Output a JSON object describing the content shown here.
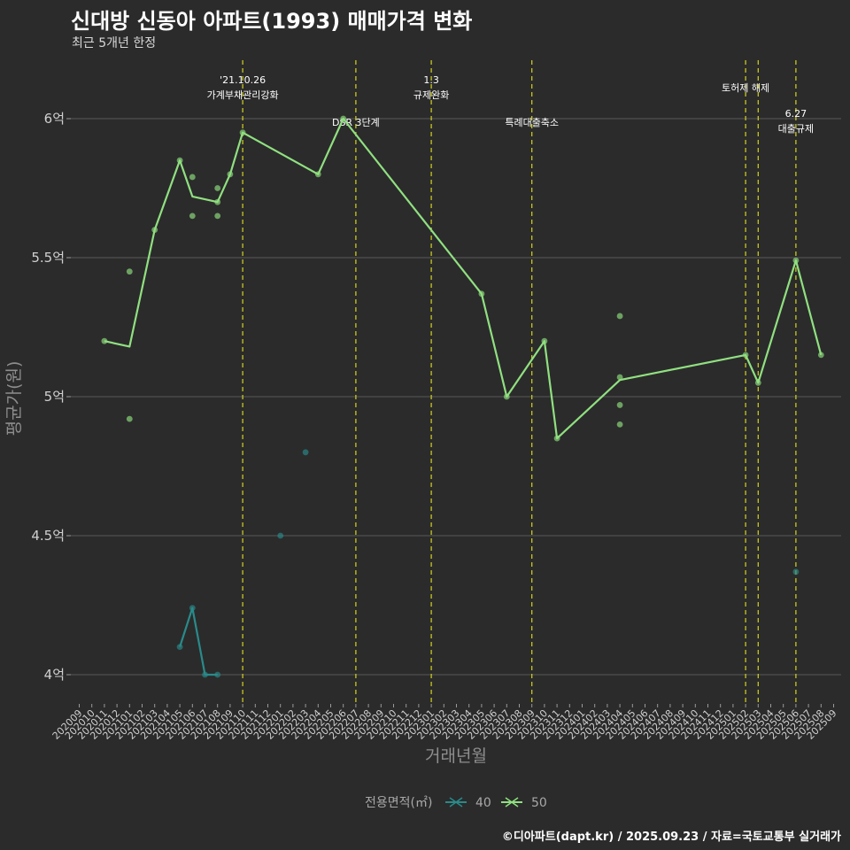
{
  "header": {
    "title": "신대방 신동아 아파트(1993) 매매가격 변화",
    "subtitle": "최근 5개년 한정"
  },
  "caption": "©디아파트(dapt.kr) / 2025.09.23 / 자료=국토교통부 실거래가",
  "colors": {
    "background": "#2b2b2b",
    "grid": "#5a5a5a",
    "series_40": "#2a8a8a",
    "series_50": "#90e080",
    "vline": "#d4d41e"
  },
  "chart_data": {
    "type": "line",
    "title": "신대방 신동아 아파트(1993) 매매가격 변화",
    "xlabel": "거래년월",
    "ylabel": "평균가(원)",
    "ylim": [
      3.9,
      6.2
    ],
    "yticks": [
      4,
      4.5,
      5,
      5.5,
      6
    ],
    "ytick_labels": [
      "4억",
      "4.5억",
      "5억",
      "5.5억",
      "6억"
    ],
    "categories": [
      "202009",
      "202010",
      "202011",
      "202012",
      "202101",
      "202102",
      "202103",
      "202104",
      "202105",
      "202106",
      "202107",
      "202108",
      "202109",
      "202110",
      "202111",
      "202112",
      "202201",
      "202202",
      "202203",
      "202204",
      "202205",
      "202206",
      "202207",
      "202208",
      "202209",
      "202210",
      "202211",
      "202212",
      "202301",
      "202302",
      "202303",
      "202304",
      "202305",
      "202306",
      "202307",
      "202308",
      "202309",
      "202310",
      "202311",
      "202312",
      "202401",
      "202402",
      "202403",
      "202404",
      "202405",
      "202406",
      "202407",
      "202408",
      "202409",
      "202410",
      "202411",
      "202412",
      "202501",
      "202502",
      "202503",
      "202504",
      "202505",
      "202506",
      "202507",
      "202508",
      "202509"
    ],
    "legend_title": "전용면적(㎡)",
    "series": [
      {
        "name": "40",
        "line": [
          [
            "202105",
            4.1
          ],
          [
            "202106",
            4.24
          ],
          [
            "202107",
            4.0
          ],
          [
            "202108",
            4.0
          ]
        ],
        "points": [
          [
            "202105",
            4.1
          ],
          [
            "202106",
            4.24
          ],
          [
            "202107",
            4.0
          ],
          [
            "202108",
            4.0
          ],
          [
            "202201",
            4.5
          ],
          [
            "202203",
            4.8
          ],
          [
            "202506",
            4.37
          ]
        ]
      },
      {
        "name": "50",
        "line": [
          [
            "202011",
            5.2
          ],
          [
            "202101",
            5.18
          ],
          [
            "202103",
            5.6
          ],
          [
            "202105",
            5.85
          ],
          [
            "202106",
            5.72
          ],
          [
            "202108",
            5.7
          ],
          [
            "202109",
            5.8
          ],
          [
            "202110",
            5.95
          ],
          [
            "202204",
            5.8
          ],
          [
            "202206",
            6.0
          ],
          [
            "202305",
            5.37
          ],
          [
            "202307",
            5.0
          ],
          [
            "202310",
            5.2
          ],
          [
            "202311",
            4.85
          ],
          [
            "202404",
            5.06
          ],
          [
            "202502",
            5.15
          ],
          [
            "202503",
            5.05
          ],
          [
            "202506",
            5.49
          ],
          [
            "202508",
            5.15
          ]
        ],
        "points": [
          [
            "202011",
            5.2
          ],
          [
            "202101",
            5.45
          ],
          [
            "202101",
            4.92
          ],
          [
            "202103",
            5.6
          ],
          [
            "202105",
            5.85
          ],
          [
            "202106",
            5.79
          ],
          [
            "202106",
            5.65
          ],
          [
            "202108",
            5.75
          ],
          [
            "202108",
            5.65
          ],
          [
            "202108",
            5.7
          ],
          [
            "202109",
            5.8
          ],
          [
            "202110",
            5.95
          ],
          [
            "202204",
            5.8
          ],
          [
            "202206",
            6.0
          ],
          [
            "202305",
            5.37
          ],
          [
            "202307",
            5.0
          ],
          [
            "202310",
            5.2
          ],
          [
            "202311",
            4.85
          ],
          [
            "202404",
            5.29
          ],
          [
            "202404",
            5.07
          ],
          [
            "202404",
            4.97
          ],
          [
            "202404",
            4.9
          ],
          [
            "202502",
            5.15
          ],
          [
            "202503",
            5.05
          ],
          [
            "202506",
            5.49
          ],
          [
            "202508",
            5.15
          ]
        ]
      }
    ],
    "events": [
      {
        "x": "202110",
        "lines": [
          "'21.10.26",
          "가계부채관리강화"
        ],
        "pos": "high"
      },
      {
        "x": "202207",
        "lines": [
          "DSR 3단계"
        ],
        "pos": "low"
      },
      {
        "x": "202301",
        "lines": [
          "1.3",
          "규제완화"
        ],
        "pos": "high"
      },
      {
        "x": "202309",
        "lines": [
          "특례대출축소"
        ],
        "pos": "low"
      },
      {
        "x": "202502",
        "lines": [
          "토허제 해제"
        ],
        "pos": "mid"
      },
      {
        "x": "202503",
        "lines": [],
        "pos": "none"
      },
      {
        "x": "202506",
        "lines": [
          "6.27",
          "대출규제"
        ],
        "pos": "lower"
      }
    ]
  }
}
